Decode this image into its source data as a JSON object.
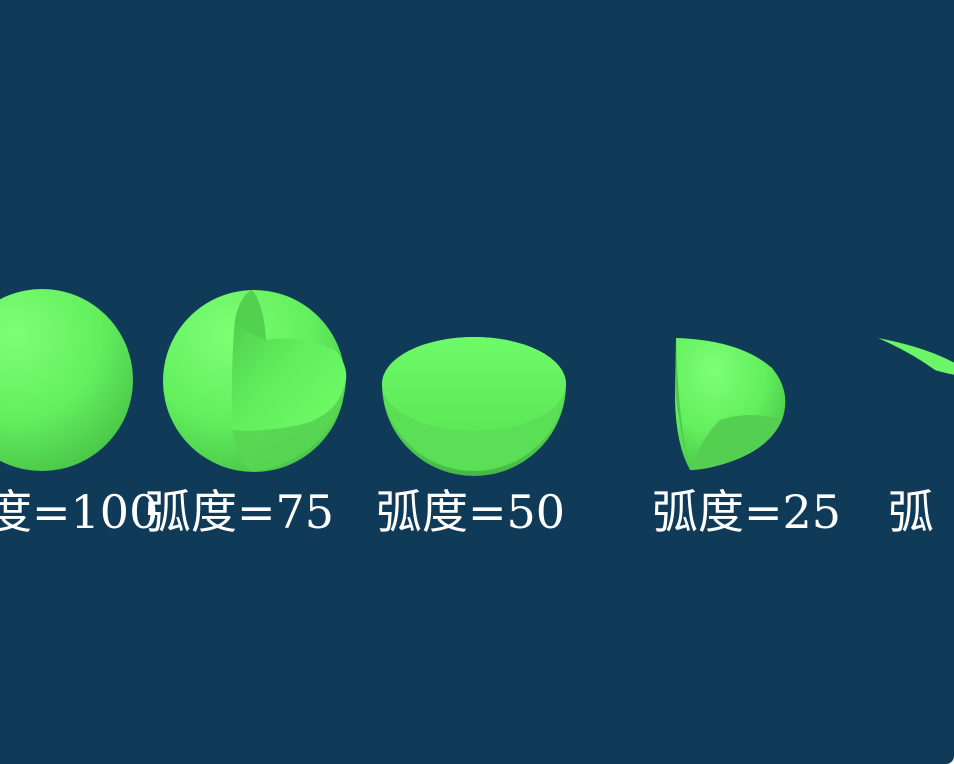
{
  "colors": {
    "background": "#0f3a58",
    "sphere_light": "#74ff6c",
    "sphere_dark": "#4cc24a",
    "label": "#ffffff"
  },
  "shapes": [
    {
      "name": "sphere-100",
      "arc": 100
    },
    {
      "name": "sphere-75",
      "arc": 75
    },
    {
      "name": "sphere-50",
      "arc": 50
    },
    {
      "name": "sphere-25",
      "arc": 25
    },
    {
      "name": "sphere-partial",
      "arc": null
    }
  ],
  "labels": [
    "度=100",
    "弧度=75",
    "弧度=50",
    "弧度=25",
    "弧"
  ]
}
